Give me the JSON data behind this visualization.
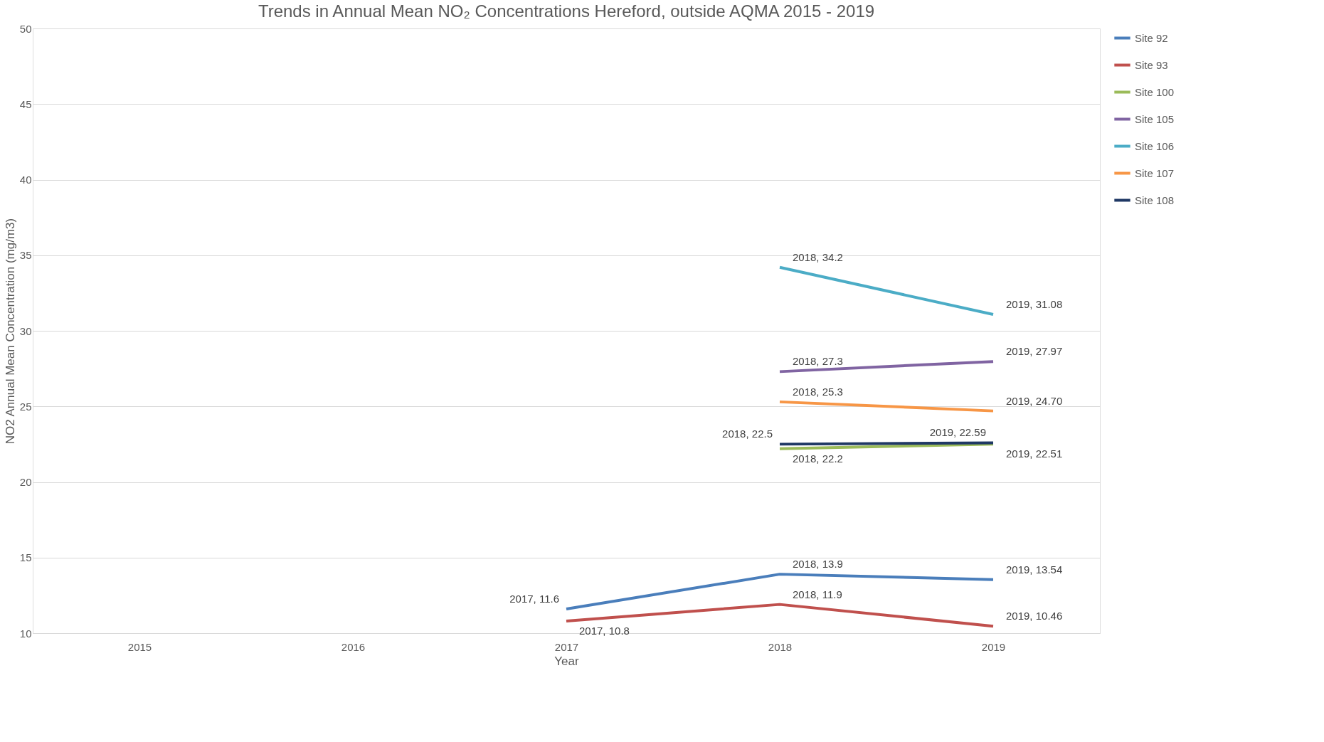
{
  "chart_data": {
    "type": "line",
    "title": "Trends in Annual Mean NO₂ Concentrations Hereford, outside AQMA 2015 - 2019",
    "xlabel": "Year",
    "ylabel": "NO2 Annual Mean Concentration (mg/m3)",
    "categories": [
      "2015",
      "2016",
      "2017",
      "2018",
      "2019"
    ],
    "ylim": [
      10,
      50
    ],
    "yticks": [
      10,
      15,
      20,
      25,
      30,
      35,
      40,
      45,
      50
    ],
    "grid": "y",
    "legend": "right",
    "marker": "none",
    "line_style": "solid",
    "series": [
      {
        "name": "Site 92",
        "color": "#4a7ebb",
        "values": [
          null,
          null,
          11.6,
          13.9,
          13.54
        ],
        "value_labels": [
          null,
          null,
          "2017, 11.6",
          "2018, 13.9",
          "2019, 13.54"
        ]
      },
      {
        "name": "Site 93",
        "color": "#c0504d",
        "values": [
          null,
          null,
          10.8,
          11.9,
          10.46
        ],
        "value_labels": [
          null,
          null,
          "2017, 10.8",
          "2018, 11.9",
          "2019, 10.46"
        ]
      },
      {
        "name": "Site 100",
        "color": "#9bbb59",
        "values": [
          null,
          null,
          null,
          22.2,
          22.51
        ],
        "value_labels": [
          null,
          null,
          null,
          "2018, 22.2",
          "2019, 22.51"
        ]
      },
      {
        "name": "Site 105",
        "color": "#8064a2",
        "values": [
          null,
          null,
          null,
          27.3,
          27.97
        ],
        "value_labels": [
          null,
          null,
          null,
          "2018, 27.3",
          "2019, 27.97"
        ]
      },
      {
        "name": "Site 106",
        "color": "#4bacc6",
        "values": [
          null,
          null,
          null,
          34.2,
          31.08
        ],
        "value_labels": [
          null,
          null,
          null,
          "2018, 34.2",
          "2019, 31.08"
        ]
      },
      {
        "name": "Site 107",
        "color": "#f79646",
        "values": [
          null,
          null,
          null,
          25.3,
          24.7
        ],
        "value_labels": [
          null,
          null,
          null,
          "2018, 25.3",
          "2019, 24.70"
        ]
      },
      {
        "name": "Site 108",
        "color": "#1f3864",
        "values": [
          null,
          null,
          null,
          22.5,
          22.59
        ],
        "value_labels": [
          null,
          null,
          null,
          "2018, 22.5",
          "2019, 22.59"
        ]
      }
    ]
  }
}
